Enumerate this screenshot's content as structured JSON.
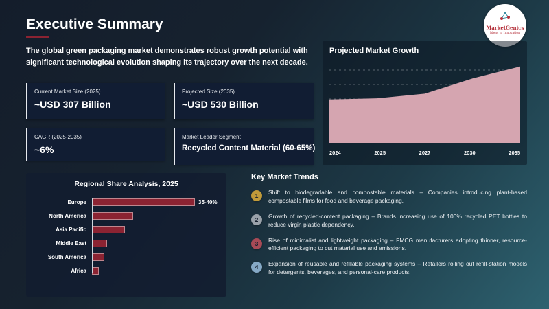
{
  "slide": {
    "title": "Executive Summary",
    "intro": "The global green packaging market demonstrates robust growth potential with significant technological evolution shaping its trajectory over the next decade."
  },
  "logo": {
    "name": "MarketGenics",
    "tagline": "Ideas to Innovation"
  },
  "stats": [
    {
      "label": "Current Market Size (2025)",
      "value": "~USD 307 Billion"
    },
    {
      "label": "Projected Size (2035)",
      "value": "~USD 530 Billion"
    },
    {
      "label": "CAGR (2025-2035)",
      "value": "~6%"
    },
    {
      "label": "Market Leader Segment",
      "value": "Recycled Content Material (60-65%)"
    }
  ],
  "growth": {
    "title": "Projected Market Growth"
  },
  "regional": {
    "title": "Regional Share Analysis, 2025"
  },
  "trends": {
    "title": "Key Market Trends",
    "items": [
      {
        "num": "1",
        "color": "#c19b3a",
        "text": "Shift to biodegradable and compostable materials – Companies introducing plant-based compostable films for food and beverage packaging."
      },
      {
        "num": "2",
        "color": "#9aa2aa",
        "text": "Growth of recycled-content packaging – Brands increasing use of 100% recycled PET bottles to reduce virgin plastic dependency."
      },
      {
        "num": "3",
        "color": "#a84a56",
        "text": "Rise of minimalist and lightweight packaging – FMCG manufacturers adopting thinner, resource-efficient packaging to cut material use and emissions."
      },
      {
        "num": "4",
        "color": "#85a9c6",
        "text": "Expansion of reusable and refillable packaging systems – Retailers rolling out refill-station models for detergents, beverages, and personal-care products."
      }
    ]
  },
  "colors": {
    "accent_maroon": "#8b2332",
    "card_bg": "#111d33"
  },
  "chart_data": [
    {
      "type": "area",
      "title": "Projected Market Growth",
      "x": [
        "2024",
        "2025",
        "2027",
        "2030",
        "2035"
      ],
      "values": [
        300,
        308,
        340,
        445,
        528
      ],
      "xlabel": "",
      "ylabel": "",
      "ylim": [
        0,
        560
      ],
      "grid": "dashed-horizontal",
      "gridline_count": 5,
      "area_color": "#d5a5b0"
    },
    {
      "type": "bar",
      "title": "Regional Share Analysis, 2025",
      "orientation": "horizontal",
      "categories": [
        "Europe",
        "North America",
        "Asia Pacific",
        "Middle East",
        "South America",
        "Africa"
      ],
      "values": [
        37.5,
        15,
        12,
        5.5,
        4.5,
        2.5
      ],
      "value_labels": [
        "35-40%",
        "",
        "",
        "",
        "",
        ""
      ],
      "xlim": [
        0,
        40
      ],
      "bar_color": "#8b2332"
    }
  ]
}
